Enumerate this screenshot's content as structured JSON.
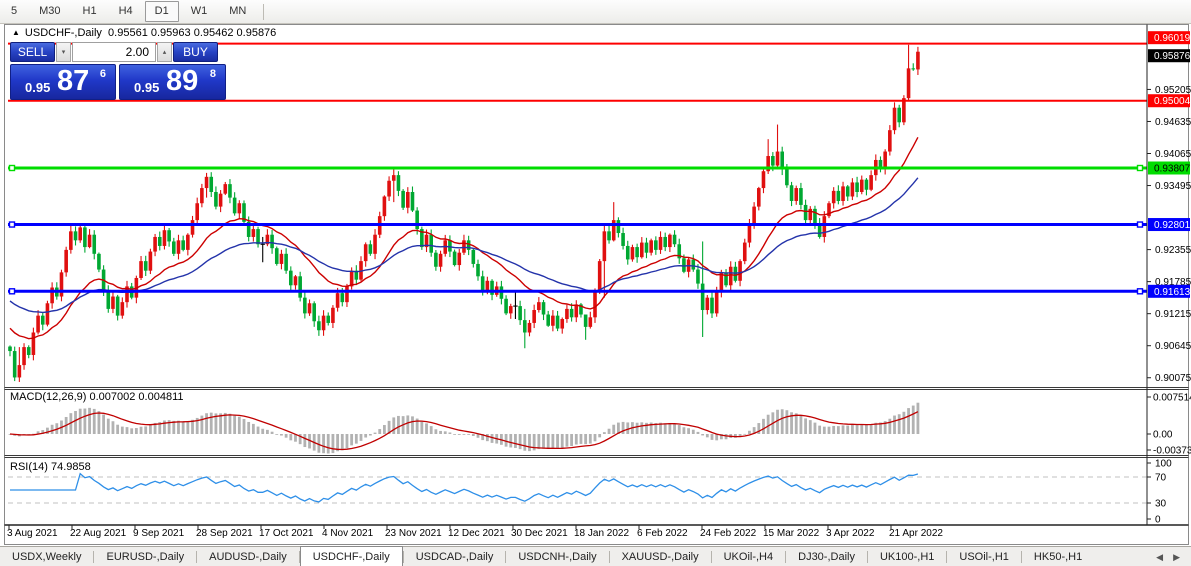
{
  "toolbar": {
    "items": [
      "5",
      "M30",
      "H1",
      "H4",
      "D1",
      "W1",
      "MN"
    ],
    "active": "D1"
  },
  "chart_header": {
    "collapse_icon": "▲",
    "symbol": "USDCHF-,Daily",
    "open": "0.95561",
    "high": "0.95963",
    "low": "0.95462",
    "close": "0.95876"
  },
  "trade_panel": {
    "sell_label": "SELL",
    "buy_label": "BUY",
    "volume": "2.00",
    "spin_down_icon": "▾",
    "spin_up_icon": "▴",
    "sell_price": {
      "prefix": "0.95",
      "big": "87",
      "sup": "6"
    },
    "buy_price": {
      "prefix": "0.95",
      "big": "89",
      "sup": "8"
    }
  },
  "colors": {
    "bull_candle": "#e01010",
    "bear_candle": "#00a832",
    "doji_bar": "#000000",
    "ma_fast": "#cc0000",
    "ma_slow": "#2433aa",
    "hline_red": "#fe0000",
    "hline_green": "#00dd00",
    "hline_blue": "#0000fe",
    "badge_black": "#000000",
    "macd_hist": "#b2b2b2",
    "macd_signal": "#c00000",
    "rsi_line": "#2e8fe8",
    "rsi_levels": "#c0c0c0"
  },
  "macd_panel": {
    "label": "MACD(12,26,9)",
    "values": "0.007002 0.004811",
    "axis_labels": [
      "0.007514",
      "0.00",
      "-0.003734"
    ]
  },
  "rsi_panel": {
    "label": "RSI(14)",
    "value": "74.9858",
    "axis_labels": [
      "100",
      "70",
      "30",
      "0"
    ]
  },
  "tabs": {
    "items": [
      "USDX,Weekly",
      "EURUSD-,Daily",
      "AUDUSD-,Daily",
      "USDCHF-,Daily",
      "USDCAD-,Daily",
      "USDCNH-,Daily",
      "XAUUSD-,Daily",
      "UKOil-,H4",
      "DJ30-,Daily",
      "UK100-,H1",
      "USOil-,H1",
      "HK50-,H1"
    ],
    "active_index": 3,
    "scroll_left_icon": "◀",
    "scroll_right_icon": "▶"
  },
  "chart_data": {
    "type": "candlestick",
    "symbol": "USDCHF-",
    "timeframe": "Daily",
    "current_bar": {
      "open": 0.95561,
      "high": 0.95963,
      "low": 0.95462,
      "close": 0.95876
    },
    "pip_factor": 0.0001,
    "closes_pips": [
      9055,
      9008,
      9030,
      9062,
      9048,
      9088,
      9118,
      9102,
      9140,
      9168,
      9152,
      9195,
      9235,
      9268,
      9252,
      9275,
      9240,
      9262,
      9228,
      9200,
      9162,
      9130,
      9152,
      9118,
      9142,
      9170,
      9150,
      9185,
      9215,
      9198,
      9232,
      9258,
      9242,
      9270,
      9250,
      9228,
      9252,
      9235,
      9262,
      9288,
      9318,
      9345,
      9365,
      9338,
      9312,
      9335,
      9352,
      9328,
      9300,
      9318,
      9285,
      9258,
      9272,
      9245,
      9245,
      9262,
      9238,
      9210,
      9228,
      9198,
      9172,
      9188,
      9150,
      9122,
      9140,
      9108,
      9092,
      9118,
      9105,
      9132,
      9158,
      9142,
      9170,
      9198,
      9182,
      9215,
      9245,
      9228,
      9262,
      9295,
      9330,
      9358,
      9368,
      9340,
      9310,
      9338,
      9305,
      9272,
      9240,
      9262,
      9230,
      9205,
      9228,
      9252,
      9232,
      9208,
      9230,
      9252,
      9235,
      9210,
      9188,
      9162,
      9180,
      9155,
      9170,
      9148,
      9122,
      9135,
      9135,
      9110,
      9088,
      9105,
      9128,
      9142,
      9120,
      9100,
      9118,
      9095,
      9112,
      9130,
      9115,
      9138,
      9120,
      9098,
      9115,
      9160,
      9215,
      9268,
      9252,
      9288,
      9265,
      9242,
      9218,
      9240,
      9222,
      9248,
      9230,
      9252,
      9235,
      9258,
      9240,
      9262,
      9245,
      9220,
      9196,
      9218,
      9200,
      9175,
      9128,
      9150,
      9122,
      9160,
      9195,
      9172,
      9205,
      9180,
      9215,
      9248,
      9280,
      9312,
      9345,
      9375,
      9402,
      9385,
      9410,
      9378,
      9350,
      9322,
      9345,
      9315,
      9288,
      9308,
      9282,
      9258,
      9295,
      9318,
      9340,
      9322,
      9348,
      9330,
      9355,
      9338,
      9360,
      9342,
      9368,
      9395,
      9378,
      9410,
      9448,
      9488,
      9462,
      9505,
      9558,
      9556.1,
      9587.6
    ],
    "wick_overrides_pips": {
      "2": [
        9062,
        9000
      ],
      "42": [
        9372,
        9328
      ],
      "54": [
        9258,
        9213
      ],
      "66": [
        9118,
        9082
      ],
      "82": [
        9382,
        9320
      ],
      "108": [
        9160,
        9112
      ],
      "110": [
        9130,
        9060
      ],
      "123": [
        9110,
        9075
      ],
      "127": [
        9280,
        9150
      ],
      "129": [
        9320,
        9250
      ],
      "148": [
        9250,
        9080
      ],
      "162": [
        9432,
        9370
      ],
      "164": [
        9458,
        9378
      ],
      "192": [
        9600,
        9500
      ],
      "194": [
        9596.3,
        9546.2
      ]
    },
    "doji_indices": [
      54,
      108
    ],
    "moving_averages": [
      {
        "name": "fast-ma",
        "period": 20,
        "color_key": "ma_fast"
      },
      {
        "name": "slow-ma",
        "period": 45,
        "color_key": "ma_slow"
      }
    ],
    "hlines": [
      {
        "price": 0.96019,
        "label": "0.96019",
        "color_key": "hline_red",
        "width": 2,
        "handles": false,
        "badge_fg": "#ffffff",
        "badge_dy": -6
      },
      {
        "price": 0.95004,
        "label": "0.95004",
        "color_key": "hline_red",
        "width": 2,
        "handles": false,
        "badge_fg": "#ffffff",
        "badge_dy": 0
      },
      {
        "price": 0.93807,
        "label": "0.93807",
        "color_key": "hline_green",
        "width": 3,
        "handles": true,
        "badge_fg": "#000000",
        "badge_dy": 0
      },
      {
        "price": 0.92801,
        "label": "0.92801",
        "color_key": "hline_blue",
        "width": 3,
        "handles": true,
        "badge_fg": "#ffffff",
        "badge_dy": 0
      },
      {
        "price": 0.91613,
        "label": "0.91613",
        "color_key": "hline_blue",
        "width": 3,
        "handles": true,
        "badge_fg": "#ffffff",
        "badge_dy": 0
      }
    ],
    "current_price_badge": {
      "price": 0.95876,
      "label": "0.95876",
      "badge_dy": 4
    },
    "price_axis_ticks": [
      {
        "price": 0.95205,
        "label": "0.95205"
      },
      {
        "price": 0.94635,
        "label": "0.94635"
      },
      {
        "price": 0.94065,
        "label": "0.94065"
      },
      {
        "price": 0.93495,
        "label": "0.93495"
      },
      {
        "price": 0.92355,
        "label": "0.92355"
      },
      {
        "price": 0.91785,
        "label": "0.91785"
      },
      {
        "price": 0.91215,
        "label": "0.91215"
      },
      {
        "price": 0.90645,
        "label": "0.90645"
      },
      {
        "price": 0.90075,
        "label": "0.90075"
      }
    ],
    "macd": {
      "params": [
        12,
        26,
        9
      ],
      "current_macd": 0.007002,
      "current_signal": 0.004811,
      "axis_top": 0.007514,
      "axis_zero": 0.0,
      "axis_bottom": -0.003734
    },
    "rsi": {
      "period": 14,
      "current": 74.9858,
      "levels": [
        70,
        30
      ],
      "range": [
        0,
        100
      ]
    },
    "x_dates": [
      "3 Aug 2021",
      "22 Aug 2021",
      "9 Sep 2021",
      "28 Sep 2021",
      "17 Oct 2021",
      "4 Nov 2021",
      "23 Nov 2021",
      "12 Dec 2021",
      "30 Dec 2021",
      "18 Jan 2022",
      "6 Feb 2022",
      "24 Feb 2022",
      "15 Mar 2022",
      "3 Apr 2022",
      "21 Apr 2022"
    ]
  }
}
